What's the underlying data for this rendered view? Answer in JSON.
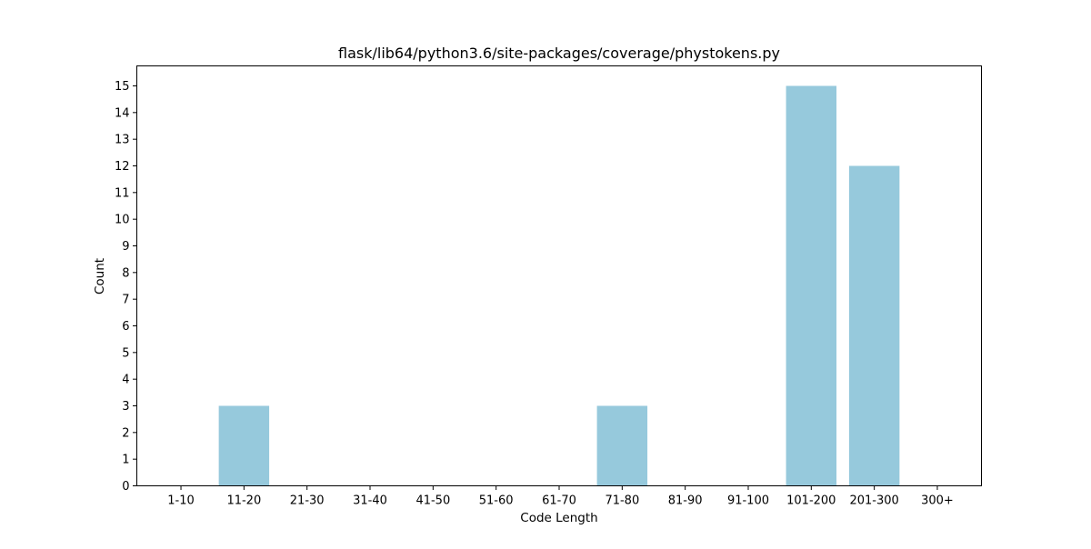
{
  "chart_data": {
    "type": "bar",
    "title": "flask/lib64/python3.6/site-packages/coverage/phystokens.py",
    "xlabel": "Code Length",
    "ylabel": "Count",
    "categories": [
      "1-10",
      "11-20",
      "21-30",
      "31-40",
      "41-50",
      "51-60",
      "61-70",
      "71-80",
      "81-90",
      "91-100",
      "101-200",
      "201-300",
      "300+"
    ],
    "values": [
      0,
      3,
      0,
      0,
      0,
      0,
      0,
      3,
      0,
      0,
      15,
      12,
      0
    ],
    "ylim": [
      0,
      15.75
    ],
    "yticks": [
      0,
      1,
      2,
      3,
      4,
      5,
      6,
      7,
      8,
      9,
      10,
      11,
      12,
      13,
      14,
      15
    ],
    "bar_color": "#96c9dc",
    "grid": false,
    "legend": "none"
  }
}
